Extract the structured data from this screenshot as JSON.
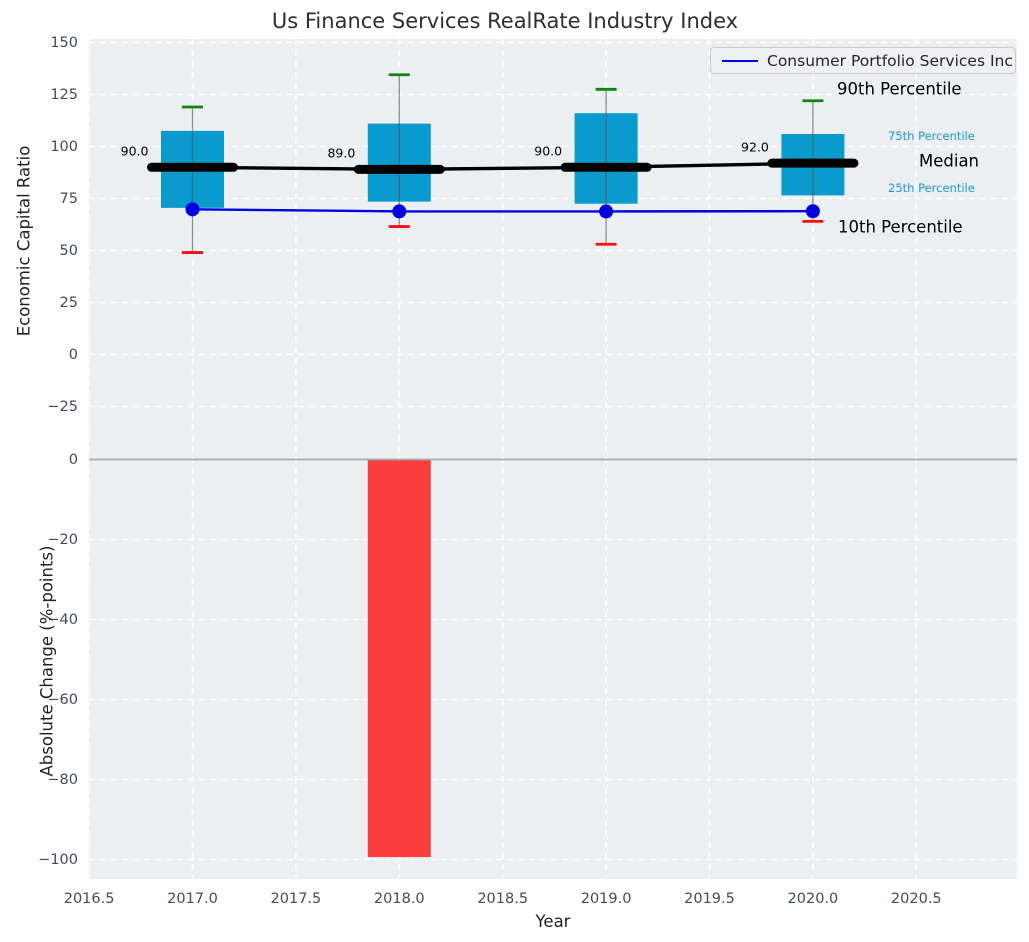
{
  "title": "Us Finance Services RealRate Industry Index",
  "legend": {
    "series_label": "Consumer Portfolio Services Inc"
  },
  "chart_data": [
    {
      "type": "boxplot-line",
      "title": "Us Finance Services RealRate Industry Index",
      "ylabel": "Economic Capital Ratio",
      "ylim": [
        -42,
        152
      ],
      "grid": true,
      "legend_position": "upper right",
      "yticks": {
        "labels": [
          "150",
          "125",
          "100",
          "75",
          "50",
          "25",
          "0",
          "−25"
        ],
        "values": [
          150,
          125,
          100,
          75,
          50,
          25,
          0,
          -25
        ]
      },
      "categories": [
        2017,
        2018,
        2019,
        2020
      ],
      "boxes": [
        {
          "year": 2017,
          "p10": 49.0,
          "p25": 70.5,
          "median": 90.0,
          "p75": 107.5,
          "p90": 119.0,
          "median_label": "90.0"
        },
        {
          "year": 2018,
          "p10": 61.5,
          "p25": 73.5,
          "median": 89.0,
          "p75": 111.0,
          "p90": 134.5,
          "median_label": "89.0"
        },
        {
          "year": 2019,
          "p10": 53.0,
          "p25": 72.5,
          "median": 90.0,
          "p75": 116.0,
          "p90": 127.5,
          "median_label": "90.0"
        },
        {
          "year": 2020,
          "p10": 64.0,
          "p25": 76.5,
          "median": 92.0,
          "p75": 106.0,
          "p90": 122.0,
          "median_label": "92.0"
        }
      ],
      "series": [
        {
          "name": "Consumer Portfolio Services Inc",
          "values": [
            69.8,
            68.8,
            68.8,
            68.9
          ],
          "color": "#0000e0"
        }
      ],
      "annotations": [
        {
          "text": "90th Percentile",
          "color": "#000000",
          "size": "large"
        },
        {
          "text": "75th Percentile",
          "color": "#1899cc",
          "size": "small"
        },
        {
          "text": "Median",
          "color": "#000000",
          "size": "large"
        },
        {
          "text": "25th Percentile",
          "color": "#1899cc",
          "size": "small"
        },
        {
          "text": "10th Percentile",
          "color": "#000000",
          "size": "large"
        }
      ],
      "colors": {
        "box": "#0a9ace",
        "whisker": "#555555",
        "cap_top": "#0f830f",
        "cap_bottom": "#fc0d0d",
        "median": "#000000",
        "background": "#ebeff1",
        "gridline": "#ffffff"
      }
    },
    {
      "type": "bar",
      "xlabel": "Year",
      "ylabel": "Absolute Change (%-points)",
      "xlim": [
        2016.49,
        2021.0
      ],
      "ylim": [
        -104.5,
        4.1
      ],
      "grid": true,
      "xticks": {
        "labels": [
          "2016.5",
          "2017.0",
          "2017.5",
          "2018.0",
          "2018.5",
          "2019.0",
          "2019.5",
          "2020.0",
          "2020.5"
        ],
        "values": [
          2016.5,
          2017.0,
          2017.5,
          2018.0,
          2018.5,
          2019.0,
          2019.5,
          2020.0,
          2020.5
        ]
      },
      "yticks": {
        "labels": [
          "0",
          "−20",
          "−40",
          "−60",
          "−80",
          "−100"
        ],
        "values": [
          0,
          -20,
          -40,
          -60,
          -80,
          -100
        ]
      },
      "bars": [
        {
          "year": 2018,
          "value": -99.4
        }
      ],
      "bar_color": "#fa3d3d",
      "zero_line_color": "#aaaaaa"
    }
  ]
}
